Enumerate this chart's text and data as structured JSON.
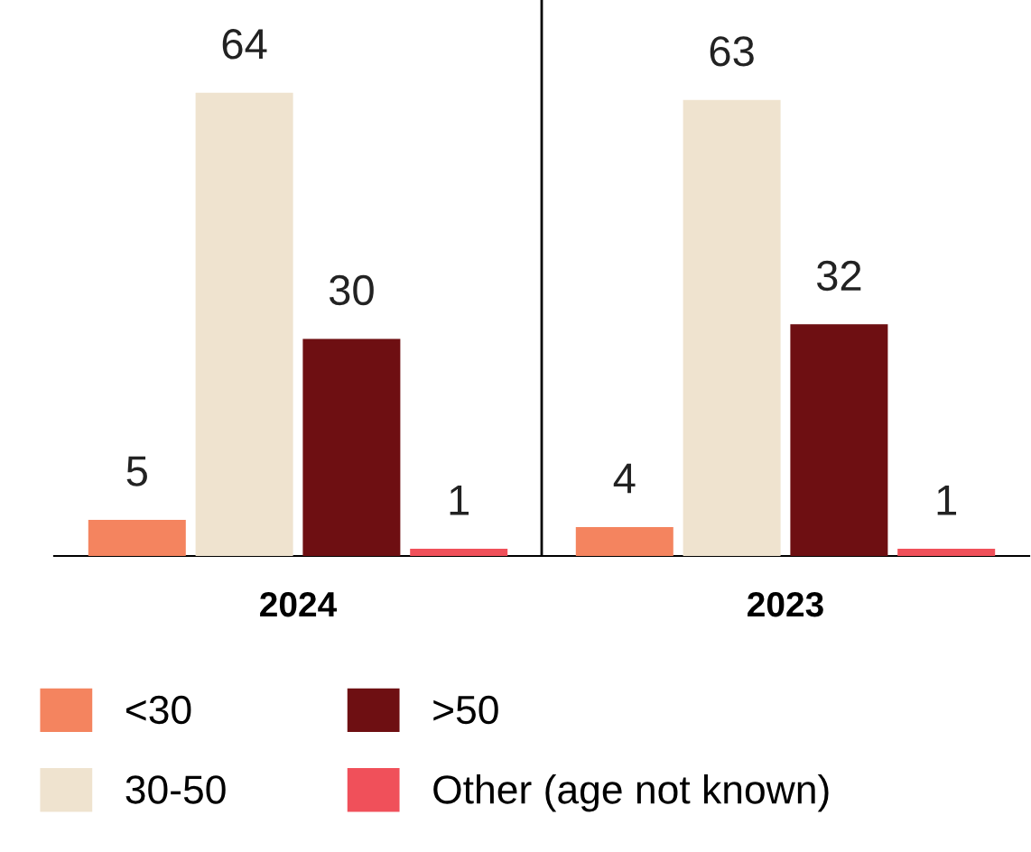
{
  "chart_data": {
    "type": "bar",
    "categories": [
      "2024",
      "2023"
    ],
    "data_labels": true,
    "legend": "bottom",
    "series": [
      {
        "name": "<30",
        "color": "#f4845f",
        "values": [
          5,
          4
        ]
      },
      {
        "name": "30-50",
        "color": "#efe3cf",
        "values": [
          64,
          63
        ]
      },
      {
        "name": ">50",
        "color": "#6e0f12",
        "values": [
          30,
          32
        ]
      },
      {
        "name": "Other (age not known)",
        "color": "#f0505a",
        "values": [
          1,
          1
        ]
      }
    ]
  }
}
